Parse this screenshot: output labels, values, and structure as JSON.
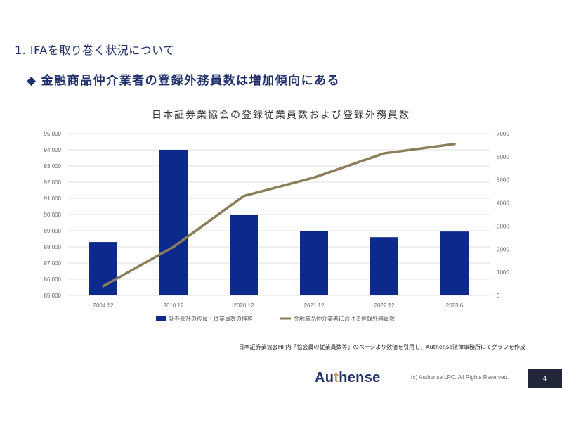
{
  "header": {
    "section_title": "1. IFAを取り巻く状況について",
    "subheading_marker": "◆",
    "subheading": "金融商品仲介業者の登録外務員数は増加傾向にある"
  },
  "chart_data": {
    "type": "bar+line",
    "title": "日本証券業協会の登録従業員数および登録外務員数",
    "categories": [
      "2004.12",
      "2010.12",
      "2020.12",
      "2021.12",
      "2022.12",
      "2023.6"
    ],
    "series": [
      {
        "name": "証券会社の役員・従業員数の推移",
        "type": "bar",
        "axis": "left",
        "color": "#0b2a8c",
        "values": [
          88300,
          94000,
          90000,
          89000,
          88600,
          88950
        ]
      },
      {
        "name": "金融商品仲介業者における登録外務員数",
        "type": "line",
        "axis": "right",
        "color": "#8c7e5a",
        "values": [
          400,
          2100,
          4300,
          5100,
          6150,
          6550
        ]
      }
    ],
    "y_left": {
      "min": 85000,
      "max": 95000,
      "step": 1000,
      "tick_labels": [
        "85,000",
        "86,000",
        "87,000",
        "88,000",
        "89,000",
        "90,000",
        "91,000",
        "92,000",
        "93,000",
        "94,000",
        "95,000"
      ]
    },
    "y_right": {
      "min": 0,
      "max": 7000,
      "step": 1000,
      "tick_labels": [
        "0",
        "1000",
        "2000",
        "3000",
        "4000",
        "5000",
        "6000",
        "7000"
      ]
    },
    "grid": true,
    "legend_position": "bottom"
  },
  "footer": {
    "source": "日本証券業協会HP内「協会員の従業員数等」のページより数値を引用し、Authense法律事務所にてグラフを作成",
    "logo_prefix": "Au",
    "logo_accent": "t",
    "logo_suffix": "hense",
    "copyright": "(c) Authense LPC. All Rights Reserved.",
    "page_number": "4"
  }
}
